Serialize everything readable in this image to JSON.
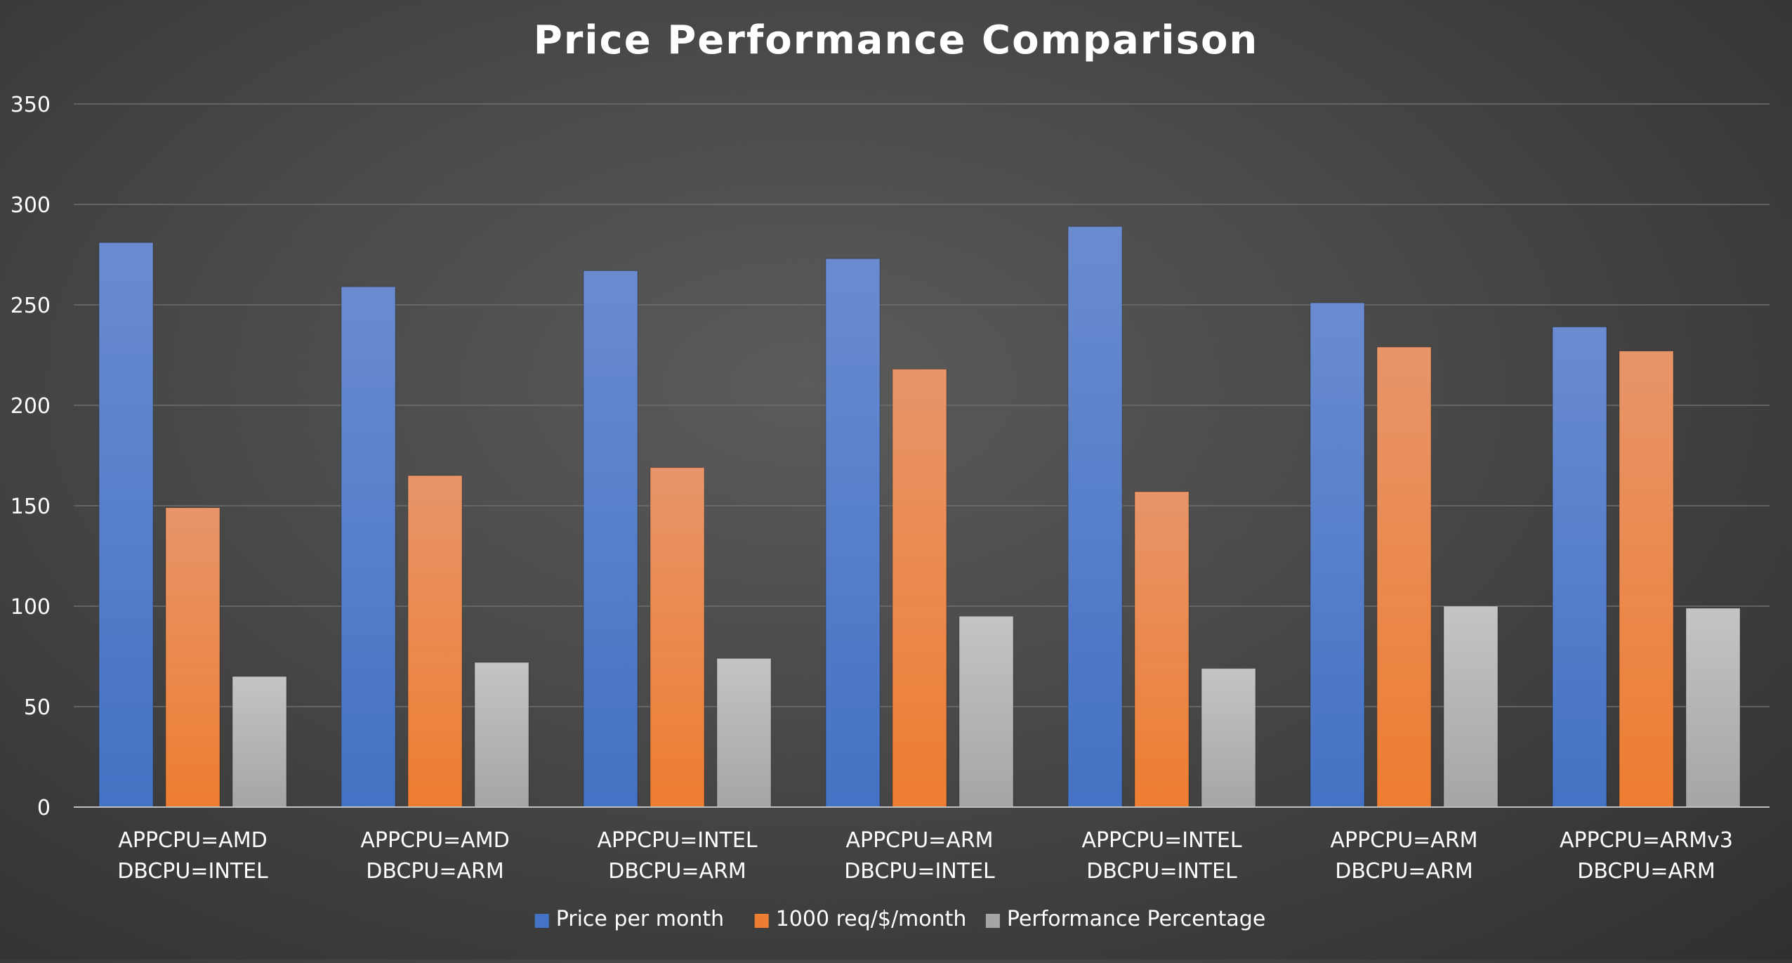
{
  "chart_data": {
    "type": "bar",
    "title": "Price Performance Comparison",
    "xlabel": "",
    "ylabel": "",
    "ylim": [
      0,
      350
    ],
    "yticks": [
      0,
      50,
      100,
      150,
      200,
      250,
      300,
      350
    ],
    "grid": true,
    "legend_position": "bottom",
    "categories": [
      [
        "APPCPU=AMD",
        "DBCPU=INTEL"
      ],
      [
        "APPCPU=AMD",
        "DBCPU=ARM"
      ],
      [
        "APPCPU=INTEL",
        "DBCPU=ARM"
      ],
      [
        "APPCPU=ARM",
        "DBCPU=INTEL"
      ],
      [
        "APPCPU=INTEL",
        "DBCPU=INTEL"
      ],
      [
        "APPCPU=ARM",
        "DBCPU=ARM"
      ],
      [
        "APPCPU=ARMv3",
        "DBCPU=ARM"
      ]
    ],
    "series": [
      {
        "name": "Price per month",
        "color": "#4472C4",
        "color_light": "#6a8bd0",
        "values": [
          281,
          259,
          267,
          273,
          289,
          251,
          239
        ]
      },
      {
        "name": "1000 req/$/month",
        "color": "#ED7D31",
        "color_light": "#e8956a",
        "values": [
          149,
          165,
          169,
          218,
          157,
          229,
          227
        ]
      },
      {
        "name": "Performance Percentage",
        "color": "#A5A5A5",
        "color_light": "#c4c4c4",
        "values": [
          65,
          72,
          74,
          95,
          69,
          100,
          99
        ]
      }
    ]
  }
}
